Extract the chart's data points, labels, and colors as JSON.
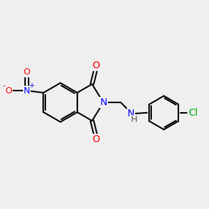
{
  "bg_color": "#efefef",
  "bond_color": "#000000",
  "bond_width": 1.5,
  "atom_colors": {
    "N": "#0000ff",
    "O": "#ff0000",
    "Cl": "#00aa00",
    "H": "#555555",
    "C": "#000000"
  },
  "font_size": 9
}
